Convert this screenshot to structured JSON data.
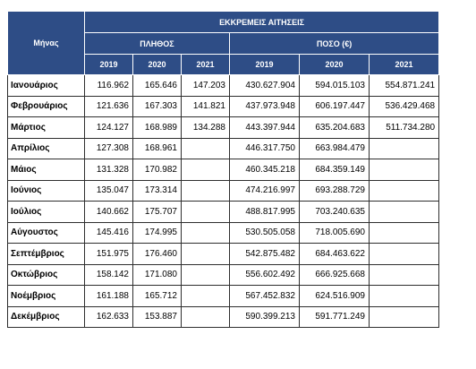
{
  "header": {
    "month_label": "Μήνας",
    "group_label": "ΕΚΚΡΕΜΕΙΣ ΑΙΤΗΣΕΙΣ",
    "count_label": "ΠΛΗΘΟΣ",
    "amount_label": "ΠΟΣΟ (€)",
    "years": [
      "2019",
      "2020",
      "2021"
    ]
  },
  "rows": [
    {
      "month": "Ιανουάριος",
      "count": [
        "116.962",
        "165.646",
        "147.203"
      ],
      "amount": [
        "430.627.904",
        "594.015.103",
        "554.871.241"
      ]
    },
    {
      "month": "Φεβρουάριος",
      "count": [
        "121.636",
        "167.303",
        "141.821"
      ],
      "amount": [
        "437.973.948",
        "606.197.447",
        "536.429.468"
      ]
    },
    {
      "month": "Μάρτιος",
      "count": [
        "124.127",
        "168.989",
        "134.288"
      ],
      "amount": [
        "443.397.944",
        "635.204.683",
        "511.734.280"
      ]
    },
    {
      "month": "Απρίλιος",
      "count": [
        "127.308",
        "168.961",
        ""
      ],
      "amount": [
        "446.317.750",
        "663.984.479",
        ""
      ]
    },
    {
      "month": "Μάιος",
      "count": [
        "131.328",
        "170.982",
        ""
      ],
      "amount": [
        "460.345.218",
        "684.359.149",
        ""
      ]
    },
    {
      "month": "Ιούνιος",
      "count": [
        "135.047",
        "173.314",
        ""
      ],
      "amount": [
        "474.216.997",
        "693.288.729",
        ""
      ]
    },
    {
      "month": "Ιούλιος",
      "count": [
        "140.662",
        "175.707",
        ""
      ],
      "amount": [
        "488.817.995",
        "703.240.635",
        ""
      ]
    },
    {
      "month": "Αύγουστος",
      "count": [
        "145.416",
        "174.995",
        ""
      ],
      "amount": [
        "530.505.058",
        "718.005.690",
        ""
      ]
    },
    {
      "month": "Σεπτέμβριος",
      "count": [
        "151.975",
        "176.460",
        ""
      ],
      "amount": [
        "542.875.482",
        "684.463.622",
        ""
      ]
    },
    {
      "month": "Οκτώβριος",
      "count": [
        "158.142",
        "171.080",
        ""
      ],
      "amount": [
        "556.602.492",
        "666.925.668",
        ""
      ]
    },
    {
      "month": "Νοέμβριος",
      "count": [
        "161.188",
        "165.712",
        ""
      ],
      "amount": [
        "567.452.832",
        "624.516.909",
        ""
      ]
    },
    {
      "month": "Δεκέμβριος",
      "count": [
        "162.633",
        "153.887",
        ""
      ],
      "amount": [
        "590.399.213",
        "591.771.249",
        ""
      ]
    }
  ]
}
